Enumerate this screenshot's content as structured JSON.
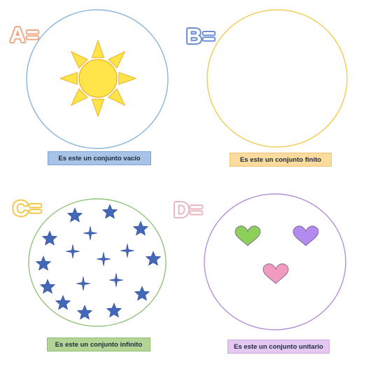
{
  "sets": {
    "a": {
      "letter": "A=",
      "caption": "Es este un conjunto vacío",
      "letter_color": "#f0a883",
      "circle_color": "#8ab6dc",
      "caption_bg": "#a7c4e7",
      "caption_border": "#7fa6d6",
      "contents": "sun-icon"
    },
    "b": {
      "letter": "B=",
      "caption": "Es este un conjunto finito",
      "letter_color": "#6c8ed4",
      "circle_color": "#f2cc52",
      "caption_bg": "#fbdb9e",
      "caption_border": "#ecc274",
      "contents": "empty"
    },
    "c": {
      "letter": "C=",
      "caption": "Es este un conjunto infinito",
      "letter_color": "#f3c74a",
      "circle_color": "#91c27a",
      "caption_bg": "#b2d596",
      "caption_border": "#93bf76",
      "contents": "star-icon"
    },
    "d": {
      "letter": "D=",
      "caption": "Es este un conjunto unitario",
      "letter_color": "#e8b8c2",
      "circle_color": "#b68fd8",
      "caption_bg": "#e4c8f2",
      "caption_border": "#cfa9e4",
      "contents": "heart-icon",
      "heart_colors": [
        "#8cd05a",
        "#b38af0",
        "#f29ac0"
      ]
    }
  },
  "star_color": "#4468b8",
  "sun_color": "#ffe44a"
}
